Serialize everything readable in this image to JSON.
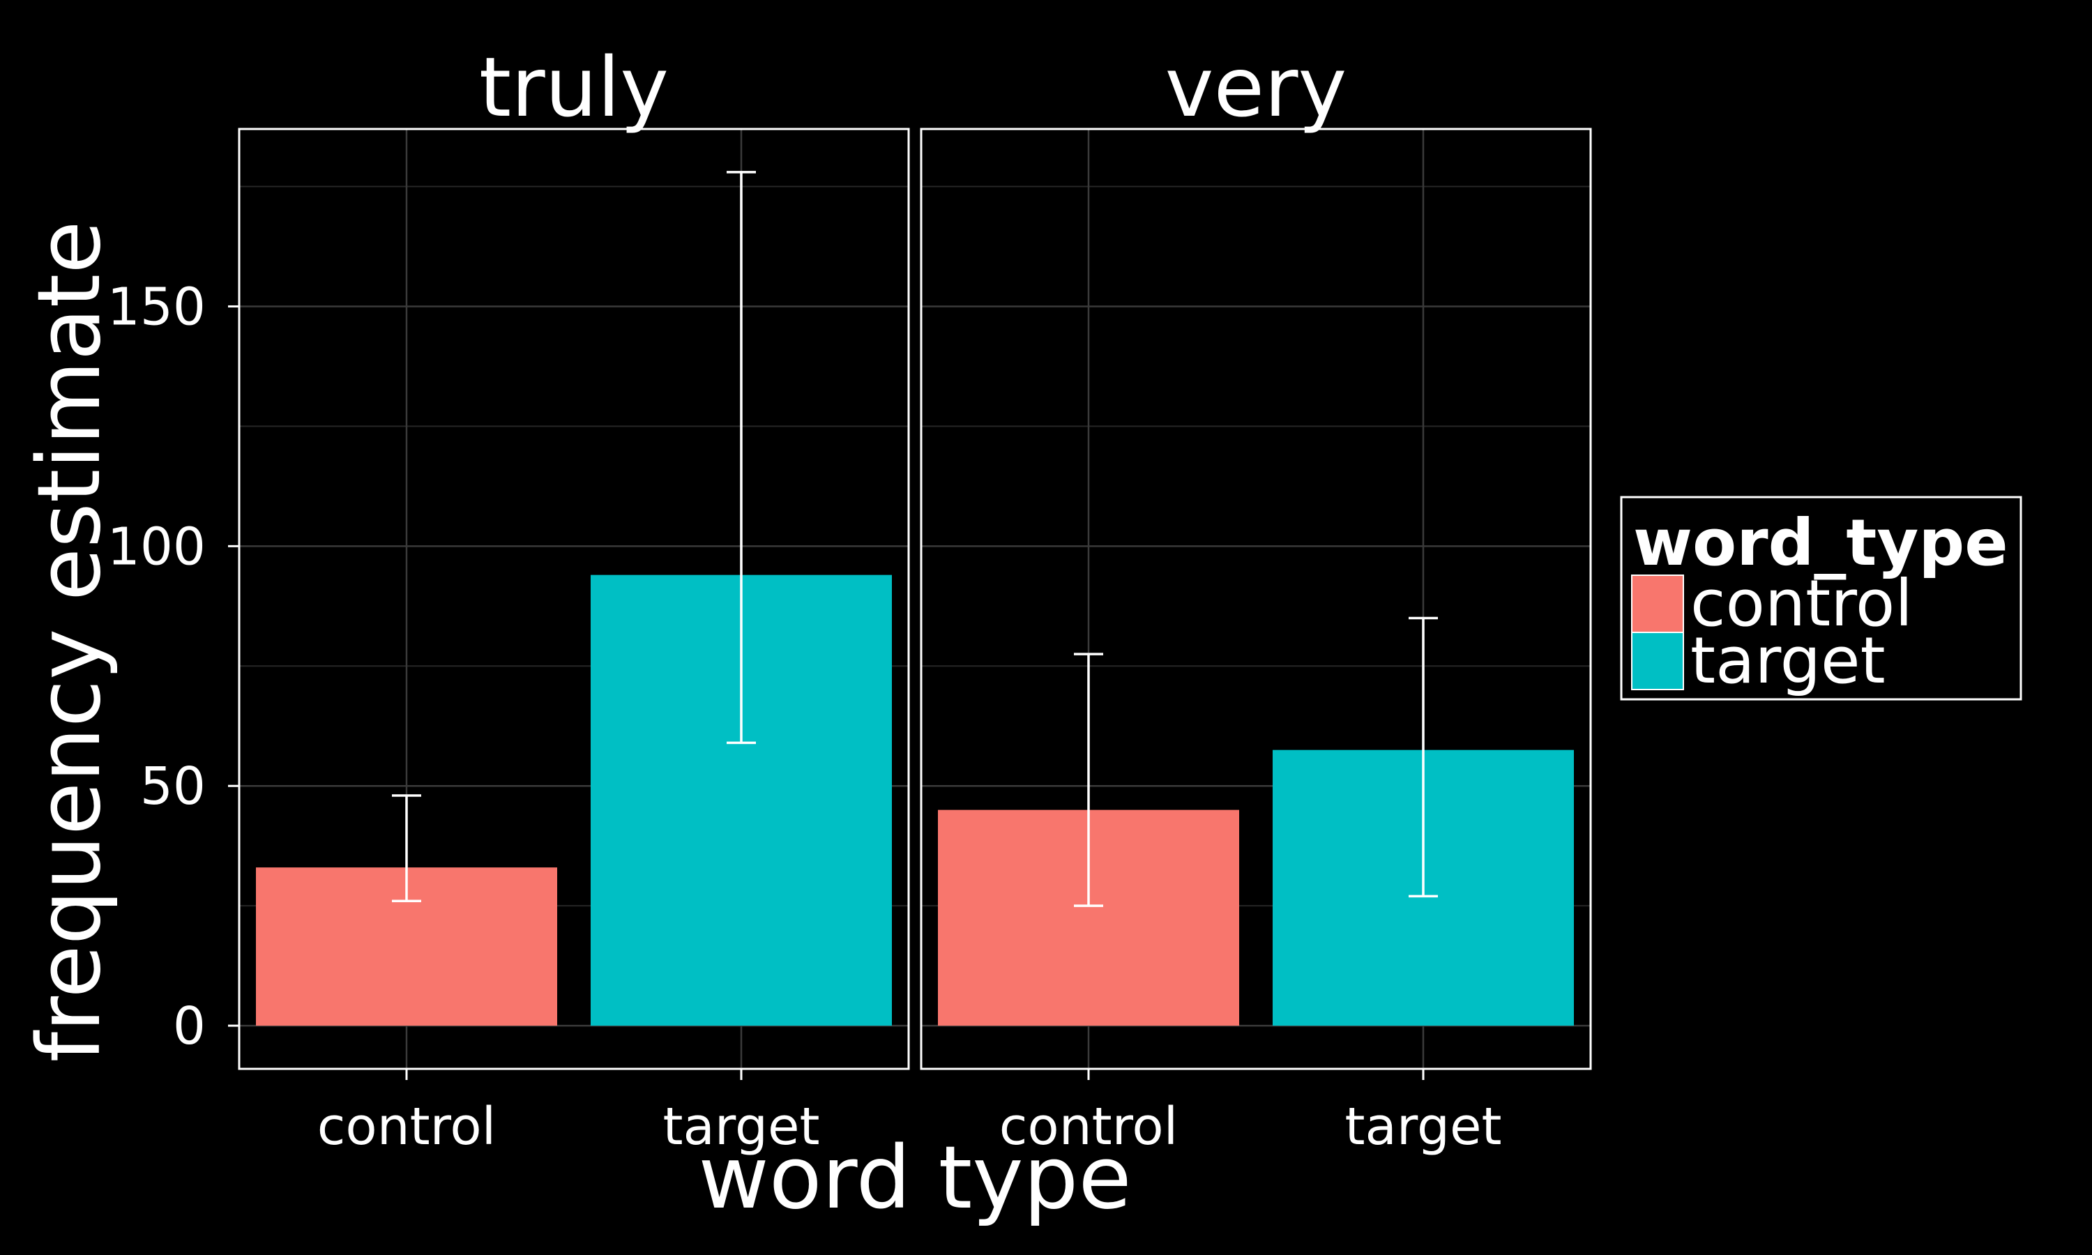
{
  "chart_data": {
    "type": "bar",
    "facets": [
      {
        "title": "truly",
        "categories": [
          "control",
          "target"
        ],
        "values": [
          33,
          94
        ],
        "error_low": [
          26,
          59
        ],
        "error_high": [
          48,
          178
        ]
      },
      {
        "title": "very",
        "categories": [
          "control",
          "target"
        ],
        "values": [
          45,
          57.5
        ],
        "error_low": [
          25,
          27
        ],
        "error_high": [
          77.5,
          85
        ]
      }
    ],
    "xlabel": "word type",
    "ylabel": "frequency estimate",
    "ylim": [
      -9,
      187
    ],
    "yticks": [
      0,
      50,
      100,
      150
    ],
    "grid": true,
    "legend": {
      "title": "word_type",
      "placement": "right",
      "entries": [
        {
          "label": "control",
          "color": "#F8766D"
        },
        {
          "label": "target",
          "color": "#00BFC4"
        }
      ]
    },
    "colors": {
      "control": "#F8766D",
      "target": "#00BFC4",
      "background": "#000000",
      "foreground": "#ffffff"
    }
  }
}
